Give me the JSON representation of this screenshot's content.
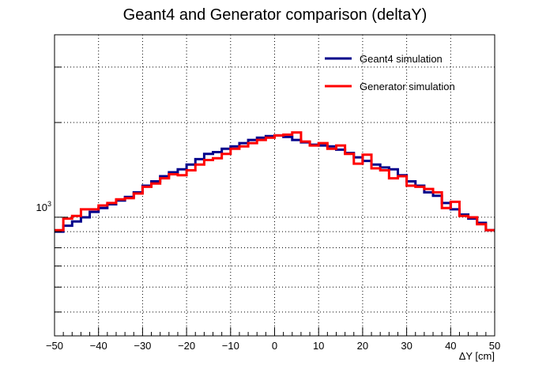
{
  "chart_data": {
    "type": "line",
    "title": "Geant4 and Generator comparison (deltaY)",
    "xlabel": "ΔY [cm]",
    "ylabel": "",
    "xlim": [
      -50,
      50
    ],
    "ylim": [
      420,
      3800
    ],
    "y_scale": "log",
    "grid": true,
    "legend_position": "top-right",
    "x_ticks": [
      "−50",
      "−40",
      "−30",
      "−20",
      "−10",
      "0",
      "10",
      "20",
      "30",
      "40",
      "50"
    ],
    "y_tick_label_base": "10",
    "y_tick_label_exp": "3",
    "bin_edges": [
      -50,
      -48,
      -46,
      -44,
      -42,
      -40,
      -38,
      -36,
      -34,
      -32,
      -30,
      -28,
      -26,
      -24,
      -22,
      -20,
      -18,
      -16,
      -14,
      -12,
      -10,
      -8,
      -6,
      -4,
      -2,
      0,
      2,
      4,
      6,
      8,
      10,
      12,
      14,
      16,
      18,
      20,
      22,
      24,
      26,
      28,
      30,
      32,
      34,
      36,
      38,
      40,
      42,
      44,
      46,
      48,
      50
    ],
    "series": [
      {
        "name": "Geant4 simulation",
        "color": "#00008b",
        "values": [
          900,
          940,
          970,
          1000,
          1040,
          1070,
          1100,
          1130,
          1160,
          1200,
          1260,
          1300,
          1350,
          1390,
          1420,
          1470,
          1530,
          1590,
          1610,
          1650,
          1680,
          1720,
          1760,
          1790,
          1810,
          1820,
          1800,
          1760,
          1730,
          1700,
          1690,
          1680,
          1640,
          1600,
          1550,
          1510,
          1470,
          1440,
          1420,
          1360,
          1300,
          1260,
          1200,
          1170,
          1110,
          1060,
          1020,
          990,
          960,
          910
        ]
      },
      {
        "name": "Generator simulation",
        "color": "#ff0000",
        "values": [
          910,
          990,
          1010,
          1060,
          1060,
          1090,
          1110,
          1140,
          1150,
          1190,
          1250,
          1280,
          1330,
          1370,
          1360,
          1410,
          1470,
          1520,
          1540,
          1590,
          1650,
          1680,
          1720,
          1760,
          1790,
          1820,
          1830,
          1860,
          1740,
          1690,
          1720,
          1650,
          1690,
          1590,
          1480,
          1580,
          1430,
          1410,
          1330,
          1350,
          1260,
          1250,
          1230,
          1200,
          1070,
          1120,
          1010,
          1000,
          950,
          910
        ]
      }
    ]
  }
}
